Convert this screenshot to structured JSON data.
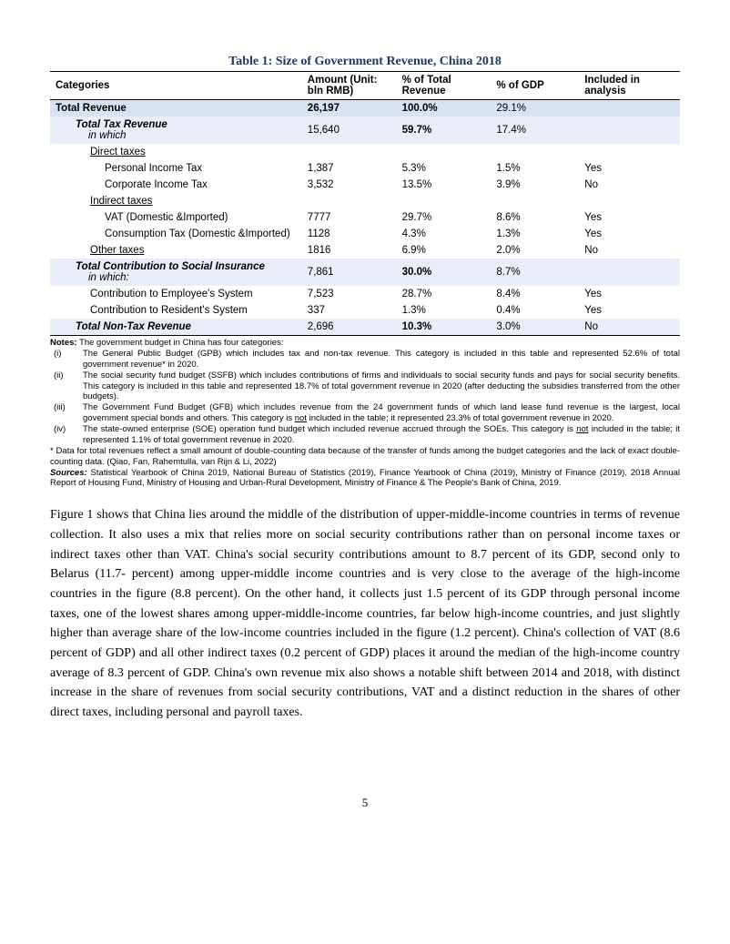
{
  "table": {
    "title": "Table 1: Size of Government Revenue, China 2018",
    "headers": {
      "c1": "Categories",
      "c2": "Amount (Unit: bln RMB)",
      "c3": "% of Total Revenue",
      "c4": "% of GDP",
      "c5": "Included in analysis"
    },
    "rows": {
      "total_rev": {
        "label": "Total Revenue",
        "amt": "26,197",
        "pct_rev": "100.0%",
        "pct_gdp": "29.1%",
        "incl": ""
      },
      "total_tax": {
        "label": "Total Tax Revenue",
        "sub": "in which",
        "amt": "15,640",
        "pct_rev": "59.7%",
        "pct_gdp": "17.4%",
        "incl": ""
      },
      "direct": {
        "label": "Direct taxes"
      },
      "pit": {
        "label": "Personal Income Tax",
        "amt": "1,387",
        "pct_rev": "5.3%",
        "pct_gdp": "1.5%",
        "incl": "Yes"
      },
      "cit": {
        "label": "Corporate Income Tax",
        "amt": "3,532",
        "pct_rev": "13.5%",
        "pct_gdp": "3.9%",
        "incl": "No"
      },
      "indirect": {
        "label": "Indirect taxes"
      },
      "vat": {
        "label": "VAT (Domestic &Imported)",
        "amt": "7777",
        "pct_rev": "29.7%",
        "pct_gdp": "8.6%",
        "incl": "Yes"
      },
      "cons": {
        "label": "Consumption Tax (Domestic &Imported)",
        "amt": "1128",
        "pct_rev": "4.3%",
        "pct_gdp": "1.3%",
        "incl": "Yes"
      },
      "other_tax": {
        "label": "Other taxes",
        "amt": "1816",
        "pct_rev": "6.9%",
        "pct_gdp": "2.0%",
        "incl": "No"
      },
      "total_ssi": {
        "label": "Total Contribution to Social Insurance",
        "sub": "in which:",
        "amt": "7,861",
        "pct_rev": "30.0%",
        "pct_gdp": "8.7%",
        "incl": ""
      },
      "emp": {
        "label": "Contribution to Employee's System",
        "amt": "7,523",
        "pct_rev": "28.7%",
        "pct_gdp": "8.4%",
        "incl": "Yes"
      },
      "res": {
        "label": "Contribution to Resident's System",
        "amt": "337",
        "pct_rev": "1.3%",
        "pct_gdp": "0.4%",
        "incl": "Yes"
      },
      "nontax": {
        "label": "Total Non-Tax Revenue",
        "amt": "2,696",
        "pct_rev": "10.3%",
        "pct_gdp": "3.0%",
        "incl": "No"
      }
    }
  },
  "notes": {
    "intro_label": "Notes:",
    "intro_text": " The government budget in China has four categories:",
    "items": [
      {
        "m": "(i)",
        "t": "The General Public Budget (GPB) which includes tax and non-tax revenue. This category is included in this table and represented 52.6% of total government revenue* in 2020."
      },
      {
        "m": "(ii)",
        "t": "The social security fund budget (SSFB) which includes contributions of firms and individuals to social security funds and pays for social security benefits. This category is included in this table and represented 18.7% of total government revenue in 2020 (after deducting the subsidies transferred from the other budgets)."
      },
      {
        "m": "(iii)",
        "t": "The Government Fund Budget (GFB) which includes revenue from the 24 government funds of which land lease fund revenue is the largest, local government special bonds and others. This category is not included in the table; it represented 23.3% of total government revenue in 2020.",
        "not_underline": true
      },
      {
        "m": "(iv)",
        "t": "The state-owned enterprise (SOE) operation fund budget which included revenue accrued through the SOEs. This category is not included in the table; it represented 1.1% of total government revenue in 2020.",
        "not_underline": true
      }
    ],
    "star": "* Data for total revenues reflect a small amount of double-counting data because of the transfer of funds among the budget categories and the lack of exact double-counting data. (Qiao, Fan, Rahemtulla, van Rijn & Li, 2022)",
    "sources_label": "Sources:",
    "sources": " Statistical Yearbook of China 2019, National Bureau of Statistics (2019), Finance Yearbook of China (2019), Ministry of Finance (2019), 2018 Annual Report of Housing Fund, Ministry of Housing and Urban-Rural Development, Ministry of Finance & The People's Bank of China, 2019."
  },
  "body": "Figure 1 shows that China lies around the middle of the distribution of upper-middle-income countries in terms of revenue collection. It also uses a mix that relies more on social security contributions rather than on personal income taxes or indirect taxes other than VAT.  China's social security contributions amount to 8.7 percent of its GDP, second only to Belarus (11.7- percent) among upper-middle income countries and is very close to the average of the high-income countries in the figure (8.8 percent). On the other hand, it collects just 1.5 percent of its GDP through personal income taxes, one of the lowest shares among upper-middle-income countries, far below high-income countries, and just slightly higher than average share of the low-income countries included in the figure (1.2 percent). China's collection of VAT (8.6 percent of GDP) and all other indirect taxes (0.2 percent of GDP) places it around the median of the high-income country average of 8.3 percent of GDP. China's own revenue mix also shows a notable shift between 2014 and 2018, with distinct increase in the share of revenues from social security contributions, VAT and a distinct reduction in the shares of other direct taxes, including personal and payroll taxes.",
  "pageNumber": "5",
  "colors": {
    "title": "#1f3864",
    "highlight": "#d9e2f3"
  }
}
